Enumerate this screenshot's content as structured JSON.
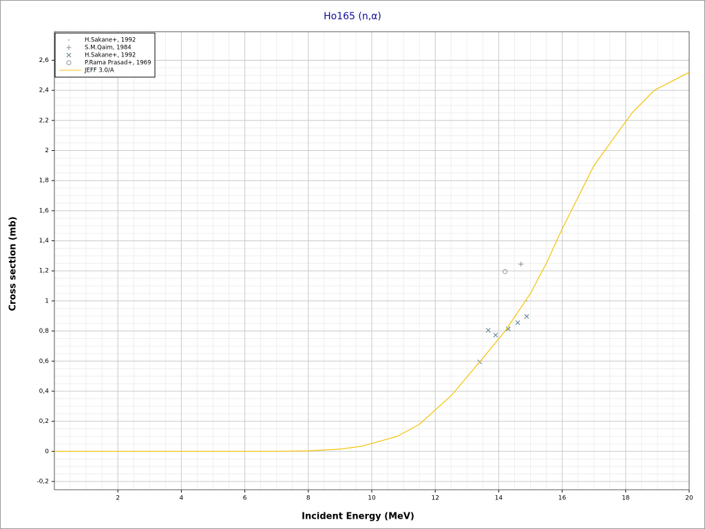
{
  "chart_data": {
    "type": "scatter",
    "title": "Ho165 (n,α)",
    "x_label": "Incident Energy (MeV)",
    "y_label": "Cross section (mb)",
    "xlim": [
      0,
      20
    ],
    "ylim": [
      -0.255,
      2.79
    ],
    "xticks": [
      2,
      4,
      6,
      8,
      10,
      12,
      14,
      16,
      18,
      20
    ],
    "yticks": [
      {
        "value": -0.2,
        "label": "-0,2"
      },
      0,
      {
        "value": 0.2,
        "label": "0,2"
      },
      {
        "value": 0.4,
        "label": "0,4"
      },
      {
        "value": 0.6,
        "label": "0,6"
      },
      {
        "value": 0.8,
        "label": "0,8"
      },
      1,
      {
        "value": 1.2,
        "label": "1,2"
      },
      {
        "value": 1.4,
        "label": "1,4"
      },
      {
        "value": 1.6,
        "label": "1,6"
      },
      {
        "value": 1.8,
        "label": "1,8"
      },
      2,
      {
        "value": 2.2,
        "label": "2,2"
      },
      {
        "value": 2.4,
        "label": "2,4"
      },
      {
        "value": 2.6,
        "label": "2,6"
      }
    ],
    "grid": true,
    "legend": "top-left",
    "series": [
      {
        "name": "H.Sakane+, 1992",
        "color": "#9aa8b0",
        "marker": "dot",
        "x": [
          14.88
        ],
        "values": [
          1.0
        ]
      },
      {
        "name": "S.M.Qaim, 1984",
        "color": "#8a9298",
        "marker": "plus",
        "x": [
          14.7
        ],
        "values": [
          1.245
        ]
      },
      {
        "name": "H.Sakane+, 1992",
        "color": "#5f7f8f",
        "marker": "cross",
        "x": [
          13.4,
          13.67,
          13.9,
          14.3,
          14.6,
          14.88
        ],
        "values": [
          0.595,
          0.805,
          0.773,
          0.815,
          0.856,
          0.897
        ]
      },
      {
        "name": "P.Rama Prasad+, 1969",
        "color": "#8a9298",
        "marker": "circle",
        "x": [
          14.2
        ],
        "values": [
          1.195
        ]
      },
      {
        "name": "JEFF 3.0/A",
        "color": "#f5c000",
        "marker": "line",
        "x": [
          0,
          7,
          8,
          9,
          9.7,
          10.8,
          11.5,
          12.5,
          13.5,
          14.2,
          15,
          15.5,
          16,
          17,
          18.2,
          18.9,
          20
        ],
        "values": [
          0,
          0,
          0.003,
          0.015,
          0.035,
          0.1,
          0.18,
          0.37,
          0.62,
          0.8,
          1.05,
          1.25,
          1.48,
          1.9,
          2.25,
          2.4,
          2.52
        ]
      }
    ]
  }
}
